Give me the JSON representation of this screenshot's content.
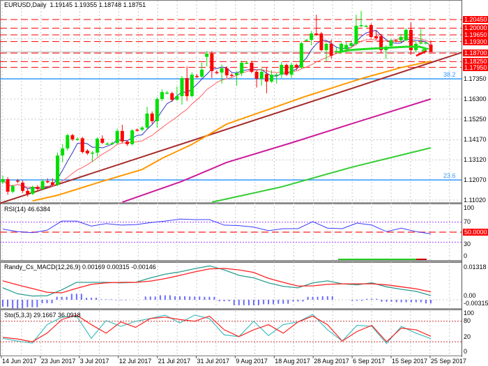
{
  "header": {
    "symbol_line": "EURUSD,Daily  1.19145 1.19355 1.18748 1.18751"
  },
  "colors": {
    "bull": "#00e000",
    "bear": "#ff0000",
    "level": "#ff0000",
    "fib": "#3399ff",
    "trend": "#a52a2a",
    "ma_orange": "#ff9900",
    "ma_magenta": "#cc1a9a",
    "ma_green": "#33cc33",
    "ma_fast": "#3030c0",
    "ma_slow": "#ff6060",
    "rsi": "#3b3bff",
    "macd_main": "#2a9d8f",
    "macd_signal": "#ff2020",
    "macd_hist": "#6a6aff",
    "sto_main": "#40c0c0",
    "sto_signal": "#ff2020"
  },
  "chart_data": [
    {
      "type": "candlestick",
      "title": "EURUSD,Daily",
      "ohlc_current": {
        "open": "1.19145",
        "high": "1.19355",
        "low": "1.18748",
        "close": "1.18751"
      },
      "ylim": [
        1.1089,
        1.21
      ],
      "y_ticks": [
        "1.17350",
        "1.16300",
        "1.15250",
        "1.14170",
        "1.13120",
        "1.12070",
        "1.11020"
      ],
      "y_tick_values": [
        1.1735,
        1.163,
        1.1525,
        1.1417,
        1.1312,
        1.1207,
        1.1102
      ],
      "x_labels": [
        "14 Jun 2017",
        "23 Jun 2017",
        "3 Jul 2017",
        "12 Jul 2017",
        "21 Jul 2017",
        "31 Jul 2017",
        "9 Aug 2017",
        "18 Aug 2017",
        "28 Aug 2017",
        "6 Sep 2017",
        "15 Sep 2017",
        "25 Sep 2017"
      ],
      "grid": true,
      "candles": [
        [
          1.1195,
          1.123,
          1.1185,
          1.1211
        ],
        [
          1.1211,
          1.1222,
          1.113,
          1.1146
        ],
        [
          1.1146,
          1.1182,
          1.1138,
          1.1175
        ],
        [
          1.1204,
          1.1212,
          1.119,
          1.12
        ],
        [
          1.1193,
          1.1205,
          1.114,
          1.115
        ],
        [
          1.115,
          1.116,
          1.112,
          1.1135
        ],
        [
          1.1135,
          1.1178,
          1.1128,
          1.1171
        ],
        [
          1.1171,
          1.118,
          1.115,
          1.116
        ],
        [
          1.116,
          1.121,
          1.1155,
          1.1201
        ],
        [
          1.1201,
          1.1215,
          1.119,
          1.1195
        ],
        [
          1.1195,
          1.1215,
          1.1178,
          1.1182
        ],
        [
          1.1182,
          1.135,
          1.1175,
          1.1335
        ],
        [
          1.1335,
          1.1395,
          1.13,
          1.1372
        ],
        [
          1.1372,
          1.145,
          1.136,
          1.1441
        ],
        [
          1.1441,
          1.1448,
          1.141,
          1.1419
        ],
        [
          1.1419,
          1.143,
          1.1412,
          1.1422
        ],
        [
          1.1425,
          1.1432,
          1.1345,
          1.1353
        ],
        [
          1.136,
          1.1368,
          1.1338,
          1.1346
        ],
        [
          1.1346,
          1.1358,
          1.13,
          1.135
        ],
        [
          1.135,
          1.143,
          1.133,
          1.1423
        ],
        [
          1.1423,
          1.144,
          1.1394,
          1.1401
        ],
        [
          1.1397,
          1.1405,
          1.139,
          1.1397
        ],
        [
          1.1397,
          1.1408,
          1.139,
          1.14
        ],
        [
          1.14,
          1.1475,
          1.1395,
          1.1463
        ],
        [
          1.1463,
          1.1495,
          1.14,
          1.1408
        ],
        [
          1.1408,
          1.1415,
          1.1385,
          1.1394
        ],
        [
          1.1394,
          1.1472,
          1.1388,
          1.1466
        ],
        [
          1.147,
          1.1476,
          1.146,
          1.1466
        ],
        [
          1.147,
          1.1488,
          1.1462,
          1.1481
        ],
        [
          1.1481,
          1.159,
          1.1475,
          1.1554
        ],
        [
          1.1554,
          1.1565,
          1.15,
          1.1514
        ],
        [
          1.1514,
          1.164,
          1.148,
          1.163
        ],
        [
          1.163,
          1.168,
          1.162,
          1.1666
        ],
        [
          1.1663,
          1.1672,
          1.1655,
          1.1663
        ],
        [
          1.166,
          1.1668,
          1.1615,
          1.1626
        ],
        [
          1.1626,
          1.1695,
          1.162,
          1.1645
        ],
        [
          1.1645,
          1.175,
          1.16,
          1.1739
        ],
        [
          1.1739,
          1.18,
          1.162,
          1.1645
        ],
        [
          1.1645,
          1.177,
          1.164,
          1.1757
        ],
        [
          1.175,
          1.176,
          1.174,
          1.1747
        ],
        [
          1.1747,
          1.182,
          1.174,
          1.1783
        ],
        [
          1.185,
          1.188,
          1.18,
          1.1867
        ],
        [
          1.1867,
          1.188,
          1.174,
          1.1776
        ],
        [
          1.177,
          1.1779,
          1.176,
          1.1768
        ],
        [
          1.1768,
          1.181,
          1.171,
          1.179
        ],
        [
          1.179,
          1.18,
          1.174,
          1.1754
        ],
        [
          1.1756,
          1.1763,
          1.1745,
          1.1754
        ],
        [
          1.1754,
          1.1775,
          1.17,
          1.1765
        ],
        [
          1.1765,
          1.183,
          1.175,
          1.1819
        ],
        [
          1.1819,
          1.1826,
          1.1812,
          1.1819
        ],
        [
          1.1819,
          1.183,
          1.1765,
          1.1772
        ],
        [
          1.1772,
          1.178,
          1.169,
          1.1736
        ],
        [
          1.1736,
          1.179,
          1.17,
          1.1772
        ],
        [
          1.176,
          1.1795,
          1.166,
          1.1721
        ],
        [
          1.1721,
          1.178,
          1.1715,
          1.1757
        ],
        [
          1.1757,
          1.1765,
          1.171,
          1.1757
        ],
        [
          1.1757,
          1.1825,
          1.174,
          1.1808
        ],
        [
          1.1808,
          1.1815,
          1.175,
          1.1757
        ],
        [
          1.1757,
          1.182,
          1.174,
          1.1808
        ],
        [
          1.1808,
          1.1815,
          1.178,
          1.1794
        ],
        [
          1.1794,
          1.193,
          1.179,
          1.1921
        ],
        [
          1.1936,
          1.1942,
          1.193,
          1.1939
        ],
        [
          1.1939,
          1.1985,
          1.191,
          1.1972
        ],
        [
          1.1972,
          1.207,
          1.196,
          1.1965
        ],
        [
          1.1972,
          1.198,
          1.188,
          1.1885
        ],
        [
          1.1885,
          1.1925,
          1.1825,
          1.1918
        ],
        [
          1.1918,
          1.194,
          1.184,
          1.1856
        ],
        [
          1.1878,
          1.19,
          1.187,
          1.1881
        ],
        [
          1.1881,
          1.1925,
          1.187,
          1.1918
        ],
        [
          1.189,
          1.193,
          1.188,
          1.1912
        ],
        [
          1.1907,
          1.1935,
          1.19,
          1.1921
        ],
        [
          1.1918,
          1.207,
          1.191,
          1.2012
        ],
        [
          1.2012,
          1.209,
          1.2005,
          1.2016
        ],
        [
          1.2012,
          1.2018,
          1.2008,
          1.2012
        ],
        [
          1.2016,
          1.2025,
          1.1945,
          1.1954
        ],
        [
          1.1958,
          1.1985,
          1.194,
          1.1947
        ],
        [
          1.1958,
          1.197,
          1.187,
          1.1885
        ],
        [
          1.1885,
          1.191,
          1.184,
          1.1903
        ],
        [
          1.1907,
          1.1945,
          1.1895,
          1.1936
        ],
        [
          1.1936,
          1.1942,
          1.1925,
          1.1932
        ],
        [
          1.1936,
          1.197,
          1.1925,
          1.1954
        ],
        [
          1.1936,
          1.2,
          1.193,
          1.1991
        ],
        [
          1.1991,
          1.203,
          1.186,
          1.1885
        ],
        [
          1.1885,
          1.1935,
          1.1875,
          1.1918
        ],
        [
          1.1925,
          1.1995,
          1.1915,
          1.1925
        ],
        [
          1.1925,
          1.193,
          1.1915,
          1.1925
        ],
        [
          1.19145,
          1.19355,
          1.18748,
          1.18751
        ]
      ],
      "levels": [
        {
          "label": "1.20450",
          "value": 1.2045
        },
        {
          "label": "1.20000",
          "value": 1.2
        },
        {
          "label": "1.19650",
          "value": 1.1965
        },
        {
          "label": "1.19300",
          "value": 1.193
        },
        {
          "label": "1.18700",
          "value": 1.187
        },
        {
          "label": "1.18250",
          "value": 1.1825
        },
        {
          "label": "1.17950",
          "value": 1.1795
        }
      ],
      "fib_levels": [
        {
          "label": "38.2",
          "value": 1.1735
        },
        {
          "label": "23.6",
          "value": 1.1207
        }
      ],
      "bid": 1.18751,
      "trendline": [
        [
          0,
          1.109
        ],
        [
          86,
          1.182
        ]
      ],
      "ma_lines": [
        {
          "color": "ma_orange",
          "points": [
            [
              6,
              1.1098
            ],
            [
              11,
              1.1127
            ],
            [
              20,
              1.12
            ],
            [
              28,
              1.1262
            ],
            [
              32,
              1.132
            ],
            [
              38,
              1.1393
            ],
            [
              45,
              1.1499
            ],
            [
              61,
              1.1645
            ],
            [
              72,
              1.1736
            ],
            [
              80,
              1.1794
            ],
            [
              86,
              1.1827
            ]
          ]
        },
        {
          "color": "ma_magenta",
          "points": [
            [
              24,
              1.1091
            ],
            [
              36,
              1.12
            ],
            [
              45,
              1.1299
            ],
            [
              58,
              1.1401
            ],
            [
              70,
              1.15
            ],
            [
              86,
              1.163
            ]
          ]
        },
        {
          "color": "ma_green",
          "points": [
            [
              42,
              1.1091
            ],
            [
              56,
              1.1171
            ],
            [
              70,
              1.1273
            ],
            [
              86,
              1.1375
            ]
          ]
        }
      ]
    },
    {
      "type": "line",
      "title": "RSI(14) 46.6384",
      "ylim": [
        0,
        100
      ],
      "y_ticks": [
        "100",
        "70",
        "30",
        "0"
      ],
      "level_tag": "50.0000",
      "values": [
        56,
        51,
        49,
        54,
        72,
        72,
        62,
        67,
        64,
        65,
        69,
        72,
        76,
        75,
        75,
        64,
        63,
        60,
        53,
        57,
        57,
        71,
        58,
        57,
        68,
        64,
        51,
        58,
        51,
        46.6384
      ]
    },
    {
      "type": "line",
      "title": "Randy_Cs_MACD(12,26,9) 0.00169 0.00315 -0.00146",
      "ylim": [
        -0.00315,
        0.01318
      ],
      "y_ticks": [
        "0.01318",
        "0.00",
        "-0.00315"
      ],
      "main": [
        0.0048,
        0.0024,
        0.0015,
        0.0016,
        0.004,
        0.007,
        0.007,
        0.007,
        0.0068,
        0.007,
        0.0088,
        0.0103,
        0.0112,
        0.0125,
        0.0136,
        0.012,
        0.0098,
        0.0088,
        0.0068,
        0.0054,
        0.0048,
        0.0068,
        0.0076,
        0.0064,
        0.006,
        0.0068,
        0.0052,
        0.0042,
        0.0034,
        0.00169
      ],
      "signal": [
        0.0076,
        0.006,
        0.0045,
        0.003,
        0.0028,
        0.0046,
        0.0062,
        0.0068,
        0.007,
        0.007,
        0.0075,
        0.0085,
        0.0098,
        0.0112,
        0.0124,
        0.0126,
        0.012,
        0.011,
        0.0086,
        0.007,
        0.0055,
        0.0056,
        0.0062,
        0.0064,
        0.0064,
        0.0064,
        0.006,
        0.0052,
        0.0044,
        0.00315
      ]
    },
    {
      "type": "line",
      "title": "Sto(5,3,3) 29.1667 36.0918",
      "ylim": [
        0,
        100
      ],
      "y_ticks": [
        "100",
        "80",
        "20",
        "0"
      ],
      "main": [
        30,
        22,
        16,
        70,
        92,
        95,
        30,
        82,
        65,
        80,
        88,
        98,
        75,
        98,
        88,
        40,
        35,
        80,
        38,
        70,
        78,
        100,
        55,
        22,
        68,
        65,
        15,
        65,
        45,
        29.1667
      ],
      "signal": [
        33,
        28,
        20,
        45,
        85,
        98,
        70,
        45,
        78,
        62,
        88,
        92,
        85,
        80,
        95,
        55,
        35,
        55,
        70,
        45,
        78,
        95,
        70,
        22,
        50,
        68,
        20,
        60,
        55,
        36.0918
      ]
    }
  ]
}
